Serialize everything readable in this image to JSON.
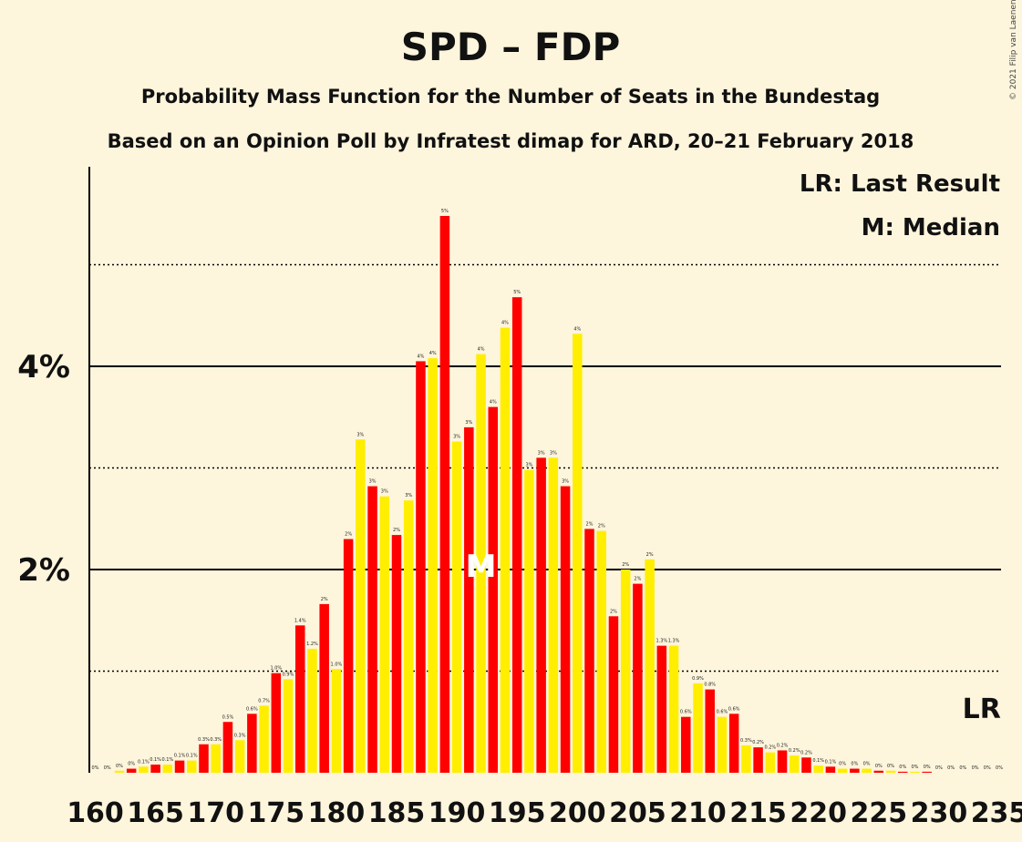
{
  "header": {
    "title": "SPD – FDP",
    "subtitle1": "Probability Mass Function for the Number of Seats in the Bundestag",
    "subtitle2": "Based on an Opinion Poll by Infratest dimap for ARD, 20–21 February 2018",
    "copyright": "© 2021 Filip van Laenen"
  },
  "legend": {
    "lr": "LR: Last Result",
    "median": "M: Median",
    "lr_marker": "LR",
    "median_marker": "M"
  },
  "colors": {
    "background": "#fdf5dc",
    "red": "#ff0000",
    "yellow": "#ffee00",
    "median_text": "#ffffff"
  },
  "chart_data": {
    "type": "bar",
    "xlim": [
      160,
      235
    ],
    "ylim": [
      0,
      5.5
    ],
    "x_ticks": [
      "160",
      "165",
      "170",
      "175",
      "180",
      "185",
      "190",
      "195",
      "200",
      "205",
      "210",
      "215",
      "220",
      "225",
      "230",
      "235"
    ],
    "y_ticks": [
      "2%",
      "4%"
    ],
    "y_tick_values": [
      2,
      4
    ],
    "solid_gridlines": [
      2,
      4
    ],
    "dotted_gridlines": [
      1,
      3,
      5
    ],
    "median_seat": 192,
    "last_result_seat": 234,
    "seats": [
      160,
      161,
      162,
      163,
      164,
      165,
      166,
      167,
      168,
      169,
      170,
      171,
      172,
      173,
      174,
      175,
      176,
      177,
      178,
      179,
      180,
      181,
      182,
      183,
      184,
      185,
      186,
      187,
      188,
      189,
      190,
      191,
      192,
      193,
      194,
      195,
      196,
      197,
      198,
      199,
      200,
      201,
      202,
      203,
      204,
      205,
      206,
      207,
      208,
      209,
      210,
      211,
      212,
      213,
      214,
      215,
      216,
      217,
      218,
      219,
      220,
      221,
      222,
      223,
      224,
      225,
      226,
      227,
      228,
      229,
      230,
      231,
      232,
      233,
      234,
      235
    ],
    "values": [
      0.0,
      0.0,
      0.02,
      0.04,
      0.06,
      0.08,
      0.08,
      0.12,
      0.12,
      0.28,
      0.28,
      0.5,
      0.32,
      0.58,
      0.66,
      0.98,
      0.92,
      1.45,
      1.22,
      1.66,
      1.02,
      2.3,
      3.28,
      2.82,
      2.72,
      2.34,
      2.68,
      4.05,
      4.08,
      5.48,
      3.26,
      3.4,
      4.12,
      3.6,
      4.38,
      4.68,
      2.98,
      3.1,
      3.1,
      2.82,
      4.32,
      2.4,
      2.38,
      1.54,
      2.0,
      1.86,
      2.1,
      1.25,
      1.25,
      0.55,
      0.88,
      0.82,
      0.55,
      0.58,
      0.27,
      0.25,
      0.2,
      0.22,
      0.17,
      0.15,
      0.07,
      0.06,
      0.04,
      0.04,
      0.04,
      0.02,
      0.02,
      0.01,
      0.01,
      0.01,
      0.0,
      0.0,
      0.0,
      0.0,
      0.0,
      0.0
    ],
    "labels": [
      "0%",
      "0%",
      "0%",
      "0%",
      "0.1%",
      "0.1%",
      "0.1%",
      "0.1%",
      "0.1%",
      "0.3%",
      "0.3%",
      "0.5%",
      "0.3%",
      "0.6%",
      "0.7%",
      "1.0%",
      "0.9%",
      "1.4%",
      "1.2%",
      "2%",
      "1.0%",
      "2%",
      "3%",
      "3%",
      "3%",
      "2%",
      "3%",
      "4%",
      "4%",
      "5%",
      "3%",
      "3%",
      "4%",
      "4%",
      "4%",
      "5%",
      "3%",
      "3%",
      "3%",
      "3%",
      "4%",
      "2%",
      "2%",
      "2%",
      "2%",
      "2%",
      "2%",
      "1.3%",
      "1.3%",
      "0.6%",
      "0.9%",
      "0.8%",
      "0.6%",
      "0.6%",
      "0.3%",
      "0.2%",
      "0.2%",
      "0.2%",
      "0.2%",
      "0.2%",
      "0.1%",
      "0.1%",
      "0%",
      "0%",
      "0%",
      "0%",
      "0%",
      "0%",
      "0%",
      "0%",
      "0%",
      "0%",
      "0%",
      "0%",
      "0%",
      "0%"
    ]
  }
}
